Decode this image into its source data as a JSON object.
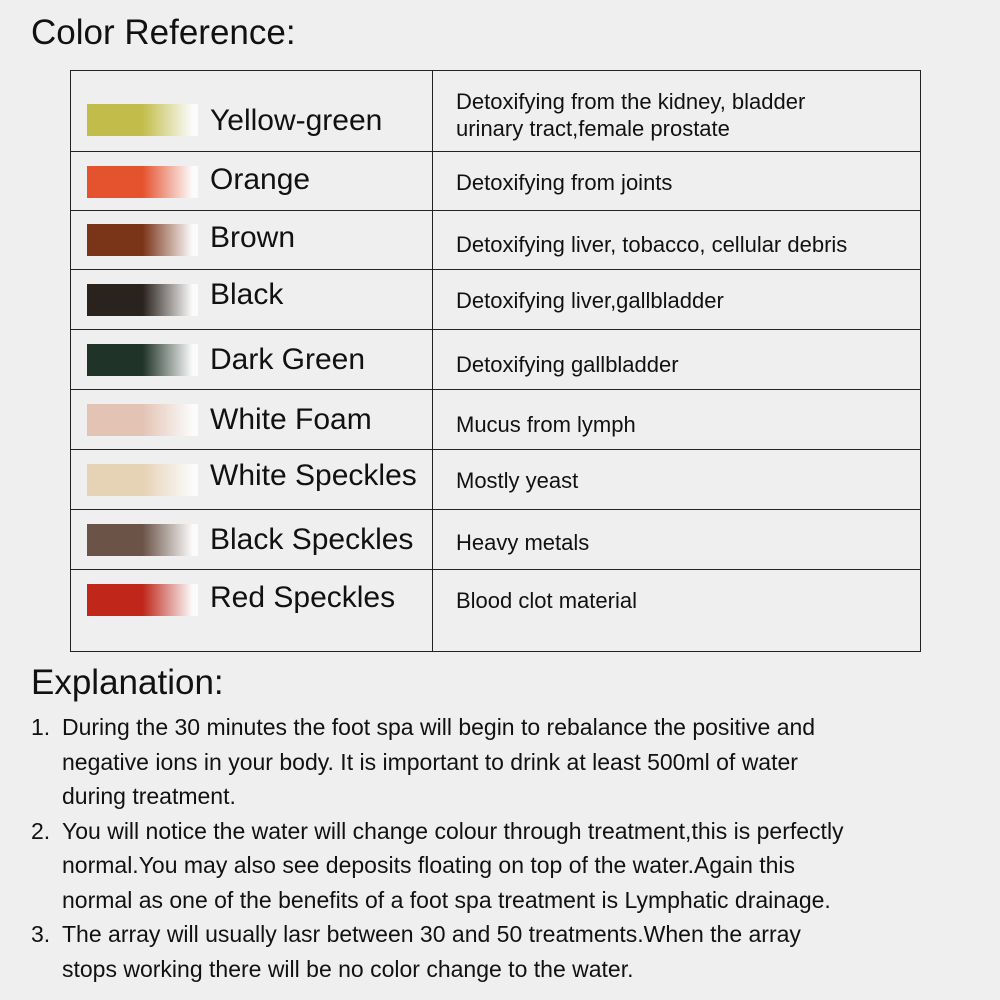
{
  "title": "Color Reference:",
  "rows": [
    {
      "label": "Yellow-green",
      "desc": [
        "Detoxifying from the kidney, bladder",
        "urinary tract,female prostate"
      ],
      "color": "#c2bd4a"
    },
    {
      "label": "Orange",
      "desc": [
        "Detoxifying from joints"
      ],
      "color": "#e5522e"
    },
    {
      "label": "Brown",
      "desc": [
        "Detoxifying liver, tobacco, cellular debris"
      ],
      "color": "#7a3418"
    },
    {
      "label": "Black",
      "desc": [
        "Detoxifying liver,gallbladder"
      ],
      "color": "#2a221d"
    },
    {
      "label": "Dark Green",
      "desc": [
        "Detoxifying gallbladder"
      ],
      "color": "#1f3328"
    },
    {
      "label": "White Foam",
      "desc": [
        "Mucus from lymph"
      ],
      "color": "#e3c4b4"
    },
    {
      "label": "White Speckles",
      "desc": [
        "Mostly yeast"
      ],
      "color": "#e6d2b5"
    },
    {
      "label": "Black Speckles",
      "desc": [
        "Heavy metals"
      ],
      "color": "#6b5348"
    },
    {
      "label": "Red Speckles",
      "desc": [
        "Blood clot material"
      ],
      "color": "#c0261a"
    }
  ],
  "explanation": {
    "title": "Explanation:",
    "items": [
      {
        "num": "1.",
        "lines": [
          "During the 30 minutes the foot spa will begin to rebalance the positive and",
          "negative ions in your body. It is important to drink at least 500ml of water",
          "during treatment."
        ]
      },
      {
        "num": "2.",
        "lines": [
          "You will notice the water will change colour through treatment,this is perfectly",
          "normal.You may also see deposits floating on top of the water.Again this",
          "normal as one of the benefits of a foot spa treatment is Lymphatic drainage."
        ]
      },
      {
        "num": "3.",
        "lines": [
          "The array will usually lasr between 30 and 50 treatments.When the array",
          "stops working there will be no color change to the water."
        ]
      }
    ]
  }
}
